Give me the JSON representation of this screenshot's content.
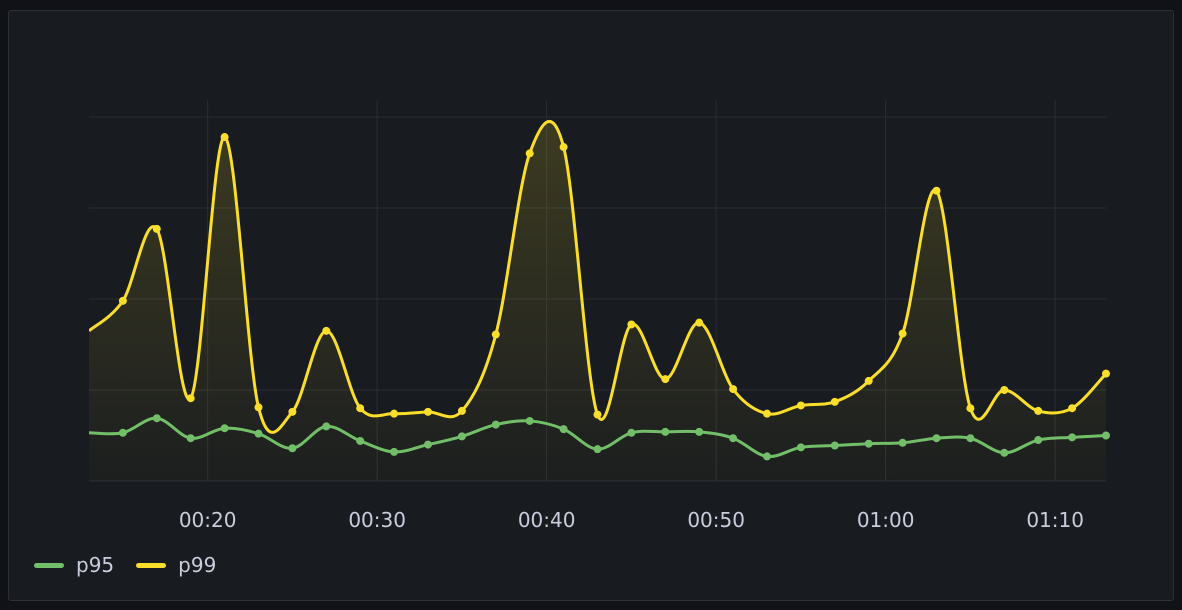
{
  "chart_data": {
    "type": "line",
    "xlabel": "",
    "ylabel": "",
    "x": [
      "00:13",
      "00:15",
      "00:17",
      "00:19",
      "00:21",
      "00:23",
      "00:25",
      "00:27",
      "00:29",
      "00:31",
      "00:33",
      "00:35",
      "00:37",
      "00:39",
      "00:41",
      "00:43",
      "00:45",
      "00:47",
      "00:49",
      "00:51",
      "00:53",
      "00:55",
      "00:57",
      "00:59",
      "01:01",
      "01:03",
      "01:05",
      "01:07",
      "01:09",
      "01:11",
      "01:13"
    ],
    "xlim": [
      "00:13",
      "01:13"
    ],
    "xticks": [
      "00:20",
      "00:30",
      "00:40",
      "00:50",
      "01:00",
      "01:10"
    ],
    "ylim": [
      0,
      4
    ],
    "yticks_shown": false,
    "grid": true,
    "legend_position": "bottom-left",
    "series": [
      {
        "name": "p99",
        "color": "#fade2a",
        "fill": "gradient",
        "values": [
          1.65,
          1.98,
          2.77,
          0.91,
          3.78,
          0.81,
          0.76,
          1.65,
          0.8,
          0.74,
          0.76,
          0.77,
          1.61,
          3.6,
          3.67,
          0.73,
          1.72,
          1.12,
          1.74,
          1.01,
          0.74,
          0.83,
          0.87,
          1.1,
          1.62,
          3.19,
          0.8,
          1.0,
          0.77,
          0.8,
          1.18
        ]
      },
      {
        "name": "p95",
        "color": "#73bf69",
        "fill": "none",
        "values": [
          0.53,
          0.53,
          0.69,
          0.47,
          0.58,
          0.52,
          0.36,
          0.6,
          0.44,
          0.32,
          0.4,
          0.49,
          0.62,
          0.66,
          0.57,
          0.35,
          0.53,
          0.54,
          0.54,
          0.47,
          0.27,
          0.37,
          0.39,
          0.41,
          0.42,
          0.47,
          0.47,
          0.31,
          0.45,
          0.48,
          0.5
        ]
      }
    ]
  },
  "legend": {
    "items": [
      {
        "label": "p95",
        "color": "#73bf69"
      },
      {
        "label": "p99",
        "color": "#fade2a"
      }
    ]
  },
  "colors": {
    "background": "#111217",
    "panel": "#181b1f",
    "grid": "#2c2e33",
    "text": "#ccccdc"
  }
}
